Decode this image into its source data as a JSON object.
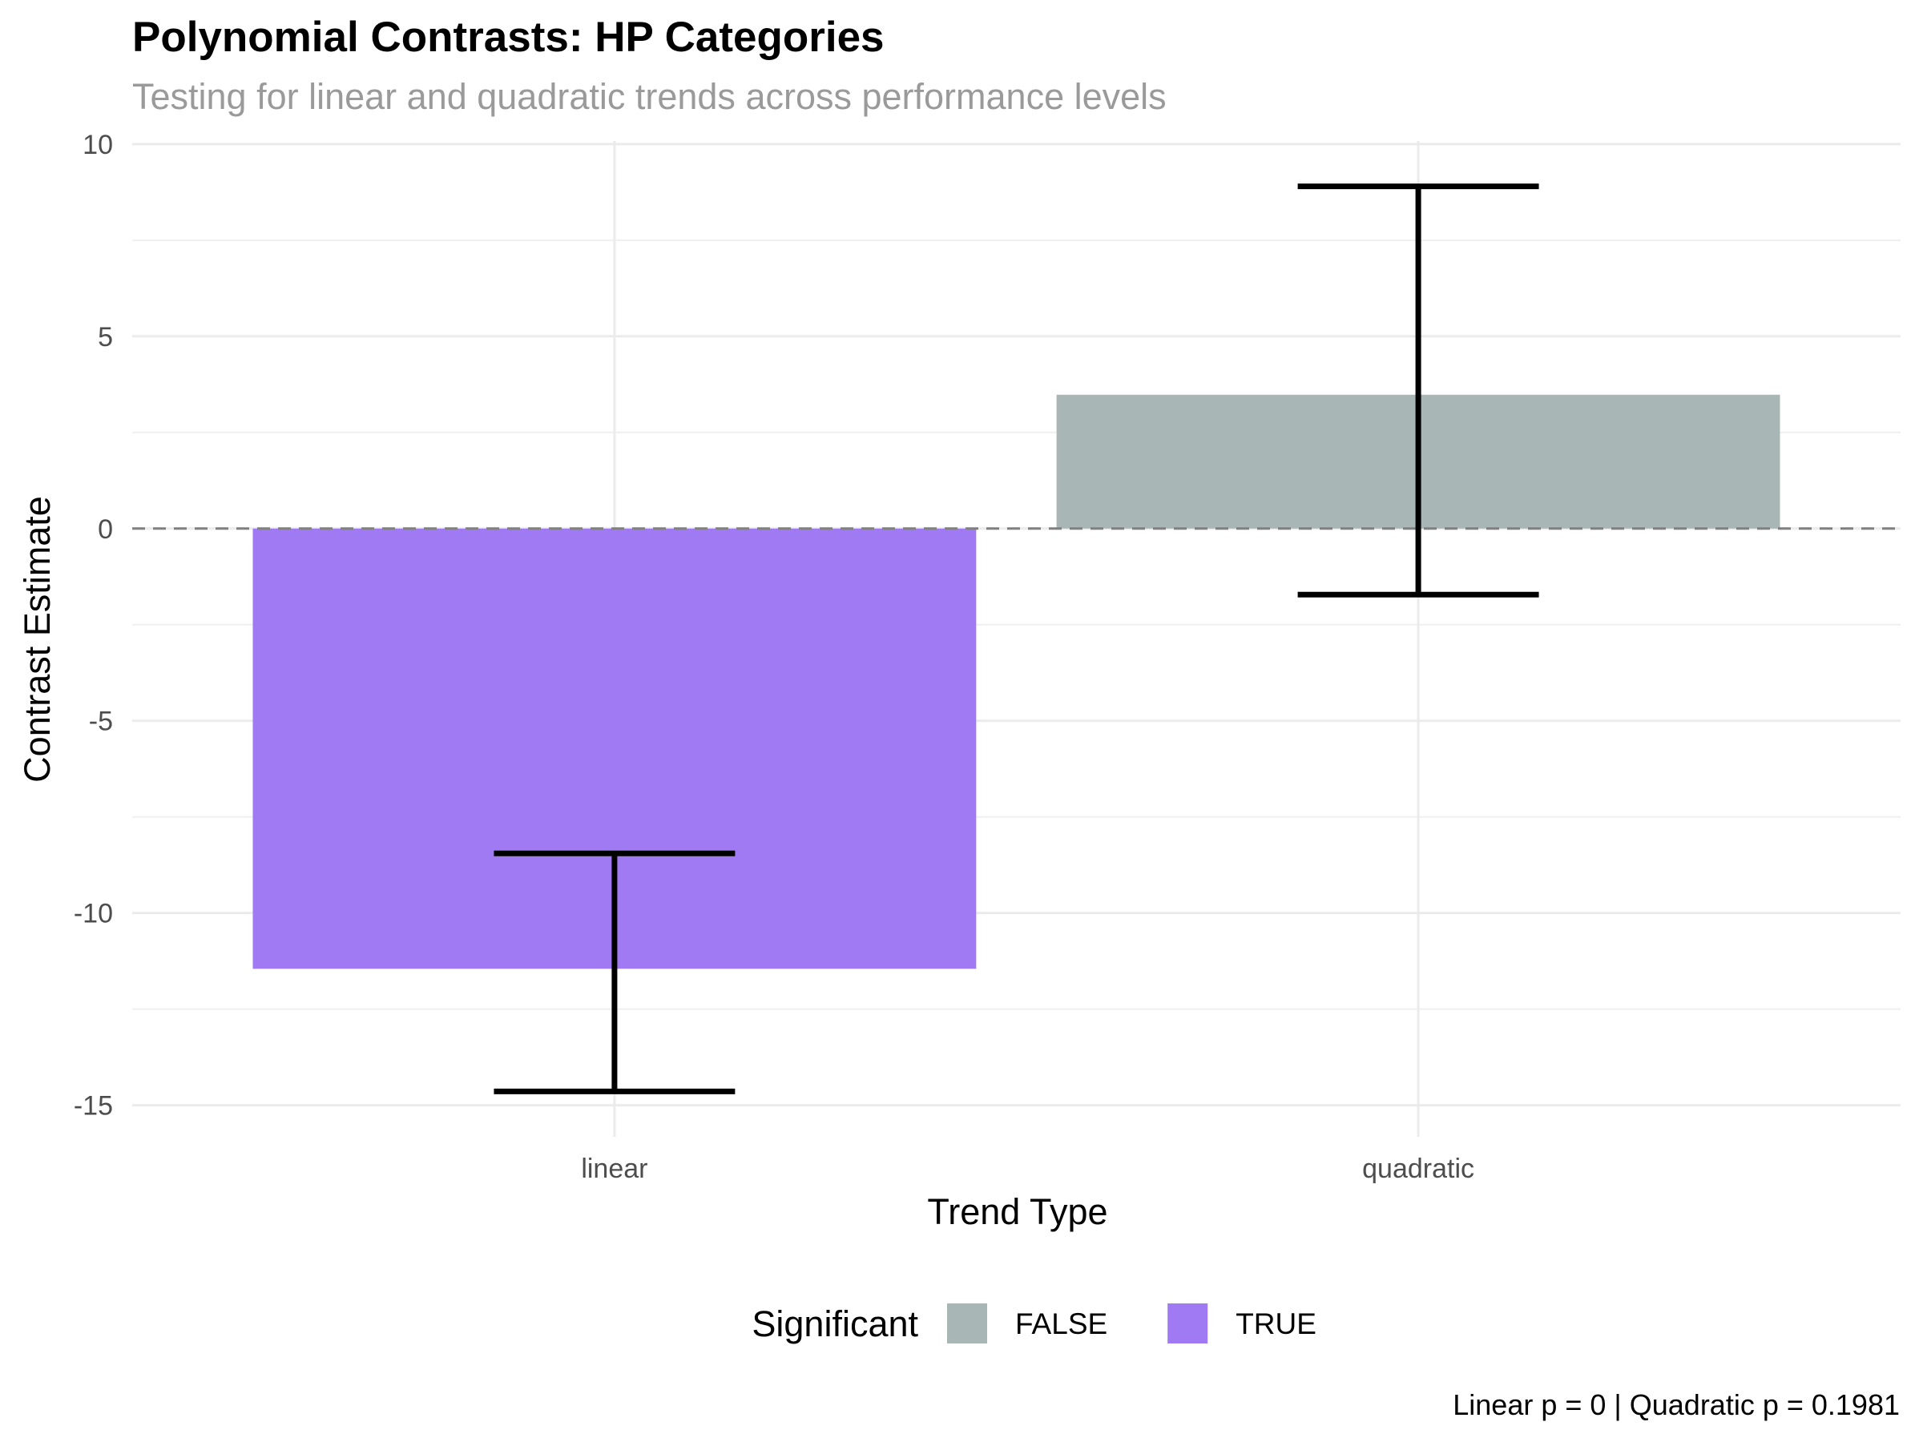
{
  "chart_data": {
    "type": "bar",
    "title": "Polynomial Contrasts: HP Categories",
    "subtitle": "Testing for linear and quadratic trends across performance levels",
    "x_label": "Trend Type",
    "y_label": "Contrast Estimate",
    "caption": "Linear p = 0 | Quadratic p = 0.1981",
    "categories": [
      "linear",
      "quadratic"
    ],
    "values": [
      -11.45,
      3.48
    ],
    "ci_lower": [
      -14.64,
      -1.72
    ],
    "ci_upper": [
      -8.45,
      8.9
    ],
    "significant": [
      "TRUE",
      "FALSE"
    ],
    "legend": {
      "title": "Significant",
      "position": "bottom",
      "entries": [
        {
          "label": "FALSE",
          "color": "#a9b6b6"
        },
        {
          "label": "TRUE",
          "color": "#a07af3"
        }
      ]
    },
    "ylim": [
      -15.82,
      10.08
    ],
    "yticks": [
      -15,
      -10,
      -5,
      0,
      5,
      10
    ],
    "reference_line": 0,
    "grid": true
  }
}
